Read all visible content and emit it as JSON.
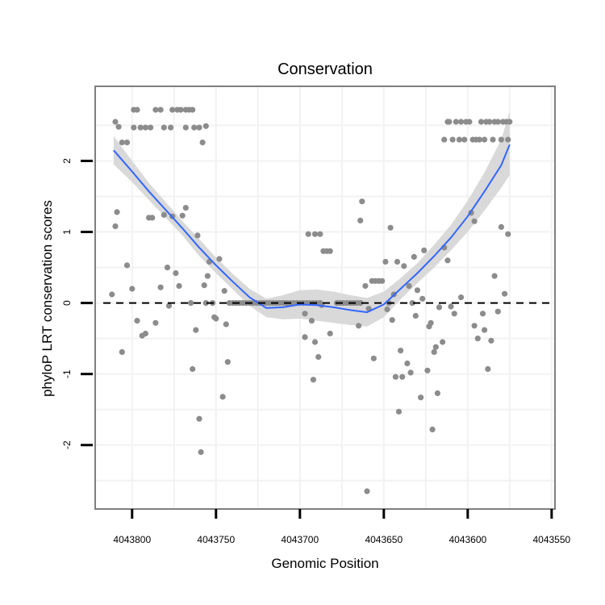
{
  "chart_data": {
    "type": "scatter",
    "title": "Conservation",
    "xlabel": "Genomic Position",
    "ylabel": "phyloP LRT conservation scores",
    "x_reversed": true,
    "xlim": [
      4043822,
      4043548
    ],
    "ylim": [
      -2.9,
      3.05
    ],
    "xticks": [
      4043800,
      4043750,
      4043700,
      4043650,
      4043600,
      4043550
    ],
    "xtick_labels": [
      "4043800",
      "4043750",
      "4043700",
      "4043650",
      "4043600",
      "4043550"
    ],
    "yticks": [
      -2,
      -1,
      0,
      1,
      2
    ],
    "ytick_labels": [
      "-2",
      "-1",
      "0",
      "1",
      "2"
    ],
    "reference_line": {
      "y": 0,
      "style": "dashed"
    },
    "colors": {
      "points": "#8c8c8c",
      "smooth_line": "#3366ff",
      "ribbon": "#d9d9d9",
      "panel_border": "#7f7f7f",
      "grid": "#f2f2f2",
      "reference_line": "#000000"
    },
    "points": [
      [
        4043810,
        2.55
      ],
      [
        4043808,
        2.48
      ],
      [
        4043806,
        2.26
      ],
      [
        4043803,
        2.26
      ],
      [
        4043799,
        2.72
      ],
      [
        4043797,
        2.72
      ],
      [
        4043799,
        2.47
      ],
      [
        4043795,
        2.47
      ],
      [
        4043792,
        2.47
      ],
      [
        4043789,
        2.47
      ],
      [
        4043786,
        2.72
      ],
      [
        4043783,
        2.72
      ],
      [
        4043781,
        2.47
      ],
      [
        4043777,
        2.47
      ],
      [
        4043776,
        2.72
      ],
      [
        4043773,
        2.72
      ],
      [
        4043771,
        2.72
      ],
      [
        4043768,
        2.72
      ],
      [
        4043766,
        2.72
      ],
      [
        4043764,
        2.72
      ],
      [
        4043768,
        2.47
      ],
      [
        4043763,
        2.47
      ],
      [
        4043760,
        2.47
      ],
      [
        4043758,
        2.26
      ],
      [
        4043756,
        2.49
      ],
      [
        4043810,
        1.08
      ],
      [
        4043809,
        1.28
      ],
      [
        4043812,
        0.12
      ],
      [
        4043806,
        -0.69
      ],
      [
        4043803,
        0.53
      ],
      [
        4043800,
        0.2
      ],
      [
        4043797,
        -0.25
      ],
      [
        4043794,
        -0.46
      ],
      [
        4043792,
        -0.43
      ],
      [
        4043790,
        1.2
      ],
      [
        4043788,
        1.2
      ],
      [
        4043786,
        -0.28
      ],
      [
        4043783,
        0.22
      ],
      [
        4043781,
        1.24
      ],
      [
        4043779,
        0.5
      ],
      [
        4043778,
        -0.04
      ],
      [
        4043776,
        1.22
      ],
      [
        4043774,
        0.42
      ],
      [
        4043772,
        0.24
      ],
      [
        4043770,
        1.23
      ],
      [
        4043768,
        1.34
      ],
      [
        4043765,
        0.0
      ],
      [
        4043764,
        -0.93
      ],
      [
        4043762,
        -0.38
      ],
      [
        4043761,
        0.95
      ],
      [
        4043760,
        -1.63
      ],
      [
        4043759,
        -2.1
      ],
      [
        4043757,
        0.25
      ],
      [
        4043756,
        0.0
      ],
      [
        4043755,
        0.38
      ],
      [
        4043754,
        0.58
      ],
      [
        4043752,
        0.0
      ],
      [
        4043751,
        -0.2
      ],
      [
        4043750,
        -0.22
      ],
      [
        4043748,
        0.62
      ],
      [
        4043746,
        -1.32
      ],
      [
        4043745,
        0.17
      ],
      [
        4043744,
        -0.3
      ],
      [
        4043743,
        -0.83
      ],
      [
        4043742,
        0.0
      ],
      [
        4043740,
        0.0
      ],
      [
        4043738,
        0.0
      ],
      [
        4043736,
        0.0
      ],
      [
        4043734,
        0.0
      ],
      [
        4043732,
        0.0
      ],
      [
        4043730,
        0.0
      ],
      [
        4043728,
        0.0
      ],
      [
        4043726,
        0.0
      ],
      [
        4043724,
        0.0
      ],
      [
        4043722,
        0.0
      ],
      [
        4043720,
        0.0
      ],
      [
        4043718,
        0.0
      ],
      [
        4043716,
        0.0
      ],
      [
        4043714,
        0.0
      ],
      [
        4043712,
        0.0
      ],
      [
        4043710,
        0.0
      ],
      [
        4043708,
        0.0
      ],
      [
        4043706,
        0.0
      ],
      [
        4043704,
        0.0
      ],
      [
        4043702,
        0.0
      ],
      [
        4043700,
        0.0
      ],
      [
        4043698,
        0.0
      ],
      [
        4043696,
        0.0
      ],
      [
        4043694,
        0.0
      ],
      [
        4043692,
        0.0
      ],
      [
        4043690,
        0.0
      ],
      [
        4043688,
        0.0
      ],
      [
        4043697,
        -0.48
      ],
      [
        4043697,
        -0.15
      ],
      [
        4043695,
        0.97
      ],
      [
        4043693,
        -0.25
      ],
      [
        4043692,
        -1.08
      ],
      [
        4043691,
        -0.55
      ],
      [
        4043691,
        0.97
      ],
      [
        4043689,
        -0.76
      ],
      [
        4043688,
        0.97
      ],
      [
        4043687,
        -0.03
      ],
      [
        4043686,
        0.73
      ],
      [
        4043684,
        0.73
      ],
      [
        4043682,
        0.73
      ],
      [
        4043682,
        -0.43
      ],
      [
        4043678,
        0.0
      ],
      [
        4043676,
        0.0
      ],
      [
        4043674,
        0.0
      ],
      [
        4043672,
        0.0
      ],
      [
        4043670,
        0.0
      ],
      [
        4043668,
        0.0
      ],
      [
        4043666,
        0.0
      ],
      [
        4043664,
        0.0
      ],
      [
        4043665,
        -0.32
      ],
      [
        4043664,
        1.16
      ],
      [
        4043663,
        1.43
      ],
      [
        4043661,
        0.24
      ],
      [
        4043660,
        -2.65
      ],
      [
        4043659,
        -0.08
      ],
      [
        4043657,
        0.31
      ],
      [
        4043656,
        -0.78
      ],
      [
        4043655,
        0.31
      ],
      [
        4043653,
        0.31
      ],
      [
        4043651,
        0.31
      ],
      [
        4043649,
        0.58
      ],
      [
        4043648,
        -0.09
      ],
      [
        4043647,
        0.0
      ],
      [
        4043646,
        1.06
      ],
      [
        4043645,
        -0.24
      ],
      [
        4043644,
        0.12
      ],
      [
        4043643,
        -1.04
      ],
      [
        4043642,
        0.58
      ],
      [
        4043641,
        -1.53
      ],
      [
        4043640,
        -0.67
      ],
      [
        4043639,
        -1.04
      ],
      [
        4043638,
        0.52
      ],
      [
        4043636,
        -0.85
      ],
      [
        4043635,
        0.24
      ],
      [
        4043634,
        -0.98
      ],
      [
        4043633,
        0.0
      ],
      [
        4043632,
        0.65
      ],
      [
        4043631,
        -0.18
      ],
      [
        4043630,
        0.18
      ],
      [
        4043628,
        -1.33
      ],
      [
        4043627,
        0.06
      ],
      [
        4043626,
        0.74
      ],
      [
        4043624,
        -0.95
      ],
      [
        4043623,
        -0.33
      ],
      [
        4043622,
        -0.28
      ],
      [
        4043621,
        -1.78
      ],
      [
        4043620,
        -0.69
      ],
      [
        4043619,
        -0.62
      ],
      [
        4043618,
        -1.27
      ],
      [
        4043617,
        -0.06
      ],
      [
        4043615,
        -0.55
      ],
      [
        4043614,
        0.78
      ],
      [
        4043612,
        0.6
      ],
      [
        4043610,
        -0.05
      ],
      [
        4043608,
        -0.15
      ],
      [
        4043604,
        0.08
      ],
      [
        4043598,
        1.27
      ],
      [
        4043596,
        1.15
      ],
      [
        4043596,
        -0.32
      ],
      [
        4043594,
        -0.5
      ],
      [
        4043591,
        -0.15
      ],
      [
        4043590,
        -0.38
      ],
      [
        4043588,
        -0.93
      ],
      [
        4043586,
        -0.53
      ],
      [
        4043584,
        0.38
      ],
      [
        4043582,
        -0.12
      ],
      [
        4043580,
        1.07
      ],
      [
        4043578,
        0.13
      ],
      [
        4043576,
        0.97
      ],
      [
        4043614,
        2.3
      ],
      [
        4043612,
        2.55
      ],
      [
        4043611,
        2.55
      ],
      [
        4043609,
        2.3
      ],
      [
        4043607,
        2.55
      ],
      [
        4043605,
        2.3
      ],
      [
        4043604,
        2.55
      ],
      [
        4043602,
        2.3
      ],
      [
        4043601,
        2.55
      ],
      [
        4043599,
        2.55
      ],
      [
        4043597,
        2.3
      ],
      [
        4043595,
        2.3
      ],
      [
        4043593,
        2.3
      ],
      [
        4043592,
        2.55
      ],
      [
        4043590,
        2.3
      ],
      [
        4043589,
        2.55
      ],
      [
        4043587,
        2.55
      ],
      [
        4043585,
        2.3
      ],
      [
        4043584,
        2.55
      ],
      [
        4043582,
        2.55
      ],
      [
        4043580,
        2.3
      ],
      [
        4043579,
        2.55
      ],
      [
        4043577,
        2.55
      ],
      [
        4043576,
        2.3
      ],
      [
        4043575,
        2.55
      ]
    ],
    "smooth": {
      "x": [
        4043811,
        4043800,
        4043790,
        4043780,
        4043770,
        4043760,
        4043750,
        4043740,
        4043730,
        4043720,
        4043710,
        4043700,
        4043690,
        4043680,
        4043670,
        4043660,
        4043650,
        4043640,
        4043630,
        4043620,
        4043610,
        4043600,
        4043590,
        4043580,
        4043575
      ],
      "y": [
        2.15,
        1.85,
        1.57,
        1.31,
        1.05,
        0.78,
        0.53,
        0.3,
        0.08,
        -0.07,
        -0.06,
        -0.02,
        -0.03,
        -0.06,
        -0.1,
        -0.13,
        -0.02,
        0.2,
        0.42,
        0.66,
        0.92,
        1.22,
        1.57,
        1.94,
        2.23
      ],
      "lower": [
        1.95,
        1.7,
        1.45,
        1.2,
        0.95,
        0.66,
        0.42,
        0.19,
        -0.04,
        -0.2,
        -0.23,
        -0.22,
        -0.25,
        -0.28,
        -0.31,
        -0.33,
        -0.2,
        0.05,
        0.28,
        0.5,
        0.74,
        1.0,
        1.3,
        1.62,
        1.8
      ],
      "upper": [
        2.35,
        2.0,
        1.69,
        1.42,
        1.15,
        0.9,
        0.64,
        0.41,
        0.2,
        0.06,
        0.11,
        0.18,
        0.19,
        0.16,
        0.11,
        0.07,
        0.16,
        0.35,
        0.56,
        0.82,
        1.1,
        1.44,
        1.84,
        2.3,
        2.7
      ]
    }
  }
}
